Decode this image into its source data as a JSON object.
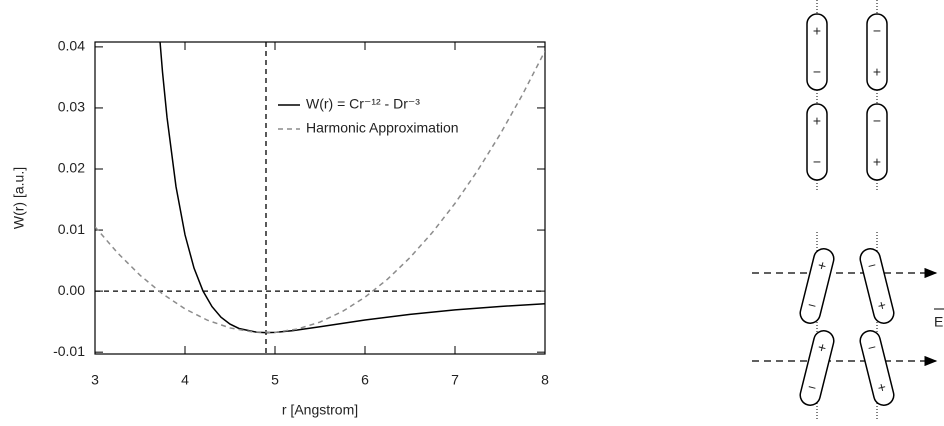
{
  "chart_data": {
    "type": "line",
    "xlabel": "r [Angstrom]",
    "ylabel": "W(r) [a.u.]",
    "xlim": [
      3,
      8
    ],
    "xticks": [
      3,
      4,
      5,
      6,
      7,
      8
    ],
    "ylim": [
      -0.0103,
      0.0408
    ],
    "yticks": [
      -0.01,
      {
        "value": 0,
        "label": "0.00"
      },
      0.01,
      0.02,
      0.03,
      0.04
    ],
    "vline": 4.9,
    "hline": 0,
    "series": [
      {
        "name": "W(r) = Cr⁻¹² - Dr⁻³",
        "color": "#000000",
        "dash": false,
        "x": [
          3.7,
          3.75,
          3.8,
          3.9,
          4.0,
          4.1,
          4.2,
          4.3,
          4.4,
          4.5,
          4.6,
          4.8,
          4.9,
          5.0,
          5.2,
          5.5,
          6.0,
          6.5,
          7.0,
          7.5,
          8.0
        ],
        "values": [
          0.0449,
          0.0359,
          0.02848,
          0.01711,
          0.00923,
          0.00378,
          2e-05,
          -0.00254,
          -0.00427,
          -0.0054,
          -0.00612,
          -0.00674,
          -0.0068,
          -0.00675,
          -0.00647,
          -0.00584,
          -0.00474,
          -0.00381,
          -0.00308,
          -0.00251,
          -0.00208
        ]
      },
      {
        "name": "Harmonic Approximation",
        "color": "#8c8c8c",
        "dash": true,
        "x": [
          3,
          3.25,
          3.5,
          3.75,
          4,
          4.25,
          4.5,
          4.75,
          5,
          5.25,
          5.5,
          5.75,
          6,
          6.25,
          6.5,
          6.75,
          7,
          7.25,
          7.5,
          7.75,
          8
        ],
        "values": [
          0.01053,
          0.00627,
          0.00261,
          -0.00045,
          -0.00291,
          -0.00477,
          -0.00603,
          -0.00669,
          -0.00675,
          -0.00621,
          -0.00507,
          -0.00333,
          -0.00099,
          0.00195,
          0.00549,
          0.00963,
          0.01437,
          0.01971,
          0.02565,
          0.03219,
          0.03933
        ]
      }
    ]
  },
  "diagram": {
    "field_label": "E",
    "dipoles": [
      {
        "top": "+",
        "bottom": "−"
      },
      {
        "top": "−",
        "bottom": "+"
      },
      {
        "top": "+",
        "bottom": "−"
      },
      {
        "top": "−",
        "bottom": "+"
      },
      {
        "top": "+",
        "bottom": "−"
      },
      {
        "top": "−",
        "bottom": "+"
      },
      {
        "top": "+",
        "bottom": "−"
      },
      {
        "top": "−",
        "bottom": "+"
      }
    ]
  }
}
